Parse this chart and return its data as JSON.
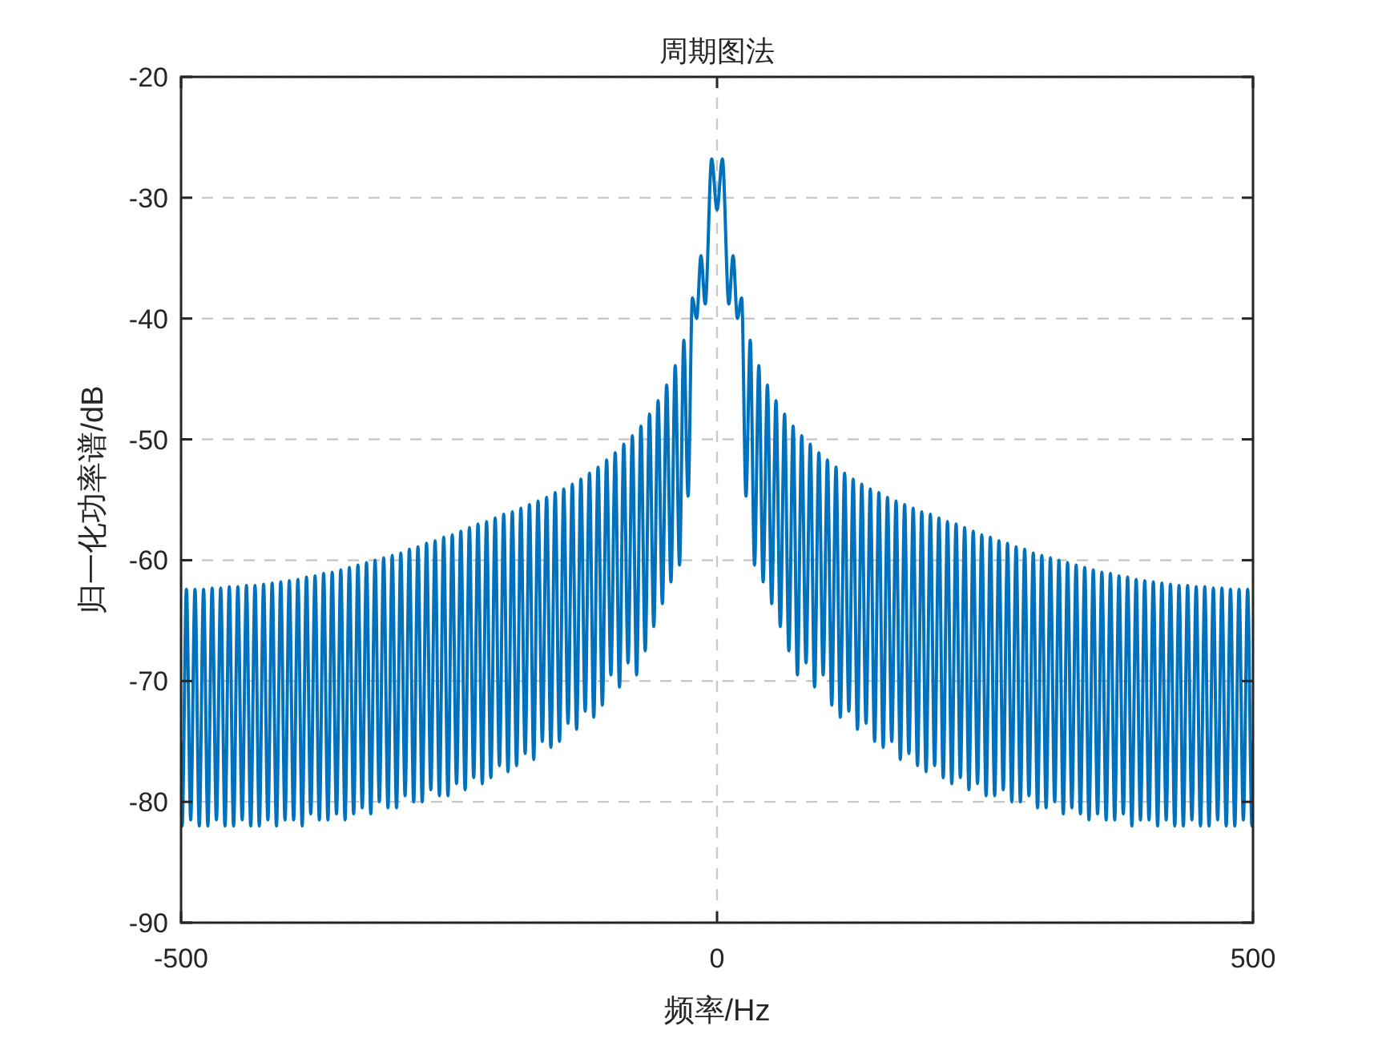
{
  "chart_data": {
    "type": "line",
    "title": "周期图法",
    "xlabel": "频率/Hz",
    "ylabel": "归一化功率谱/dB",
    "xlim": [
      -500,
      500
    ],
    "xticks": [
      -500,
      0,
      500
    ],
    "ylim": [
      -90,
      -20
    ],
    "yticks": [
      -90,
      -80,
      -70,
      -60,
      -50,
      -40,
      -30,
      -20
    ],
    "grid": true,
    "series": [
      {
        "color": "#0072bd",
        "x": [
          -500,
          -499,
          -495,
          -491,
          -487,
          -483,
          -479,
          -475,
          -471,
          -467,
          -463,
          -459,
          -455,
          -451,
          -447,
          -443,
          -439,
          -435,
          -431,
          -427,
          -423,
          -419,
          -415,
          -411,
          -407,
          -403,
          -399,
          -395,
          -391,
          -387,
          -383,
          -379,
          -375,
          -371,
          -367,
          -363,
          -359,
          -355,
          -351,
          -347,
          -343,
          -339,
          -335,
          -331,
          -327,
          -323,
          -319,
          -315,
          -311,
          -307,
          -303,
          -299,
          -295,
          -291,
          -287,
          -283,
          -279,
          -275,
          -271,
          -267,
          -263,
          -259,
          -255,
          -251,
          -247,
          -243,
          -239,
          -235,
          -231,
          -227,
          -223,
          -219,
          -215,
          -211,
          -207,
          -203,
          -199,
          -195,
          -191,
          -187,
          -183,
          -179,
          -175,
          -171,
          -167,
          -163,
          -159,
          -155,
          -151,
          -147,
          -143,
          -139,
          -135,
          -131,
          -127,
          -123,
          -119,
          -115,
          -111,
          -107,
          -103,
          -99,
          -95,
          -91,
          -87,
          -83,
          -79,
          -75,
          -71,
          -67,
          -63,
          -59,
          -55,
          -51,
          -47,
          -43,
          -39,
          -35,
          -31,
          -27,
          -23,
          -19,
          -15,
          -11,
          -5,
          0,
          5,
          11,
          15,
          19,
          23,
          27,
          31,
          35,
          39,
          43,
          47,
          51,
          55,
          59,
          63,
          67,
          71,
          75,
          79,
          83,
          87,
          91,
          95,
          99,
          103,
          107,
          111,
          115,
          119,
          123,
          127,
          131,
          135,
          139,
          143,
          147,
          151,
          155,
          159,
          163,
          167,
          171,
          175,
          179,
          183,
          187,
          191,
          195,
          199,
          203,
          207,
          211,
          215,
          219,
          223,
          227,
          231,
          235,
          239,
          243,
          247,
          251,
          255,
          259,
          263,
          267,
          271,
          275,
          279,
          283,
          287,
          291,
          295,
          299,
          303,
          307,
          311,
          315,
          319,
          323,
          327,
          331,
          335,
          339,
          343,
          347,
          351,
          355,
          359,
          363,
          367,
          371,
          375,
          379,
          383,
          387,
          391,
          395,
          399,
          403,
          407,
          411,
          415,
          419,
          423,
          427,
          431,
          435,
          439,
          443,
          447,
          451,
          455,
          459,
          463,
          467,
          471,
          475,
          479,
          483,
          487,
          491,
          495,
          499,
          500
        ],
        "values": [
          -75,
          -82,
          -62.4,
          -81.5,
          -62.4,
          -82,
          -62.4,
          -82,
          -62.3,
          -81.5,
          -62.3,
          -82,
          -62.2,
          -82,
          -62.2,
          -81.5,
          -62.1,
          -82,
          -62.1,
          -82,
          -62.0,
          -81.5,
          -61.9,
          -82,
          -61.8,
          -81.5,
          -61.7,
          -81.5,
          -61.6,
          -82,
          -61.4,
          -81,
          -61.3,
          -81.5,
          -61.1,
          -81.5,
          -61.0,
          -81,
          -60.8,
          -81.5,
          -60.6,
          -81,
          -60.4,
          -80.5,
          -60.2,
          -81,
          -60.0,
          -80,
          -59.8,
          -80.5,
          -59.6,
          -80.5,
          -59.4,
          -79.5,
          -59.1,
          -80,
          -58.9,
          -80,
          -58.6,
          -79,
          -58.4,
          -79.5,
          -58.1,
          -79.5,
          -57.9,
          -78.5,
          -57.6,
          -79,
          -57.3,
          -78,
          -57.0,
          -78.5,
          -56.8,
          -78,
          -56.5,
          -77,
          -56.2,
          -77.5,
          -56.0,
          -77,
          -55.7,
          -76,
          -55.4,
          -76.5,
          -55.1,
          -75,
          -54.8,
          -75.5,
          -54.4,
          -75,
          -54.1,
          -73.5,
          -53.7,
          -74,
          -53.3,
          -72.5,
          -52.8,
          -73,
          -52.3,
          -72,
          -51.7,
          -69.5,
          -51.1,
          -70.5,
          -50.4,
          -68.5,
          -49.7,
          -69.5,
          -48.9,
          -67.5,
          -47.9,
          -65.5,
          -46.8,
          -63.6,
          -45.5,
          -61.8,
          -43.9,
          -60.4,
          -41.8,
          -54.7,
          -38.3,
          -40,
          -34.8,
          -38.8,
          -26.8,
          -31,
          -26.8,
          -38.8,
          -34.8,
          -40,
          -38.3,
          -54.7,
          -41.8,
          -60.4,
          -43.9,
          -61.8,
          -45.5,
          -63.6,
          -46.8,
          -65.5,
          -47.9,
          -67.5,
          -48.9,
          -69.5,
          -49.7,
          -68.5,
          -50.4,
          -70.5,
          -51.1,
          -69.5,
          -51.7,
          -72,
          -52.3,
          -73,
          -52.8,
          -72.5,
          -53.3,
          -74,
          -53.7,
          -73.5,
          -54.1,
          -75,
          -54.4,
          -75.5,
          -54.8,
          -75,
          -55.1,
          -76.5,
          -55.4,
          -76,
          -55.7,
          -77,
          -56.0,
          -77.5,
          -56.2,
          -77,
          -56.5,
          -78,
          -56.8,
          -78.5,
          -57.0,
          -78,
          -57.3,
          -79,
          -57.6,
          -78.5,
          -57.9,
          -79.5,
          -58.1,
          -79.5,
          -58.4,
          -79,
          -58.6,
          -80,
          -58.9,
          -80,
          -59.1,
          -79.5,
          -59.4,
          -80.5,
          -59.6,
          -80.5,
          -59.8,
          -80,
          -60.0,
          -81,
          -60.2,
          -80.5,
          -60.4,
          -81,
          -60.6,
          -81.5,
          -60.8,
          -81,
          -61.0,
          -81.5,
          -61.1,
          -81.5,
          -61.3,
          -81,
          -61.4,
          -82,
          -61.6,
          -81.5,
          -61.7,
          -81.5,
          -61.8,
          -82,
          -61.9,
          -81.5,
          -62.0,
          -82,
          -62.1,
          -82,
          -62.1,
          -81.5,
          -62.2,
          -82,
          -62.2,
          -82,
          -62.3,
          -81.5,
          -62.3,
          -82,
          -62.4,
          -82,
          -62.4,
          -81.5,
          -62.4,
          -82,
          -75
        ]
      }
    ]
  }
}
